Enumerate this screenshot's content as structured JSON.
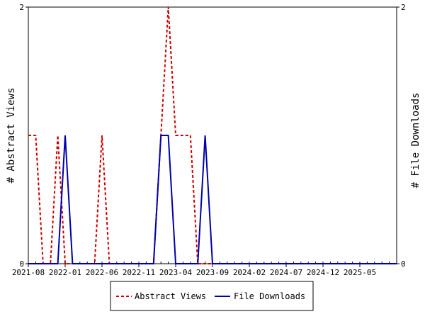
{
  "chart_data": {
    "type": "line",
    "title": "",
    "y_left_label": "# Abstract Views",
    "y_right_label": "# File Downloads",
    "y_left_range": [
      0,
      2
    ],
    "y_right_range": [
      0,
      2
    ],
    "y_left_ticks": [
      "0",
      "2"
    ],
    "y_right_ticks": [
      "0",
      "2"
    ],
    "x_tick_labels": [
      "2021-08",
      "2022-01",
      "2022-06",
      "2022-11",
      "2023-04",
      "2023-09",
      "2024-02",
      "2024-07",
      "2024-12",
      "2025-05"
    ],
    "x_range": [
      "2021-08",
      "2025-10"
    ],
    "grid": false,
    "legend_position": "bottom",
    "series": [
      {
        "name": "Abstract Views",
        "axis": "left",
        "color": "#cc0000",
        "style": "dashed",
        "points": [
          [
            "2021-08",
            1
          ],
          [
            "2021-09",
            1
          ],
          [
            "2021-10",
            0
          ],
          [
            "2021-11",
            0
          ],
          [
            "2021-12",
            1
          ],
          [
            "2022-01",
            0
          ],
          [
            "2022-02",
            0
          ],
          [
            "2022-03",
            0
          ],
          [
            "2022-04",
            0
          ],
          [
            "2022-05",
            0
          ],
          [
            "2022-06",
            1
          ],
          [
            "2022-07",
            0
          ],
          [
            "2022-08",
            0
          ],
          [
            "2022-09",
            0
          ],
          [
            "2022-10",
            0
          ],
          [
            "2022-11",
            0
          ],
          [
            "2022-12",
            0
          ],
          [
            "2023-01",
            0
          ],
          [
            "2023-02",
            1
          ],
          [
            "2023-03",
            2
          ],
          [
            "2023-04",
            1
          ],
          [
            "2023-05",
            1
          ],
          [
            "2023-06",
            1
          ],
          [
            "2023-07",
            0
          ],
          [
            "2023-08",
            0
          ],
          [
            "2023-09",
            0
          ],
          [
            "2023-10",
            0
          ],
          [
            "2023-11",
            0
          ],
          [
            "2023-12",
            0
          ],
          [
            "2024-01",
            0
          ],
          [
            "2024-02",
            0
          ],
          [
            "2024-03",
            0
          ],
          [
            "2024-04",
            0
          ],
          [
            "2024-05",
            0
          ],
          [
            "2024-06",
            0
          ],
          [
            "2024-07",
            0
          ],
          [
            "2024-08",
            0
          ],
          [
            "2024-09",
            0
          ],
          [
            "2024-10",
            0
          ],
          [
            "2024-11",
            0
          ],
          [
            "2024-12",
            0
          ],
          [
            "2025-01",
            0
          ],
          [
            "2025-02",
            0
          ],
          [
            "2025-03",
            0
          ],
          [
            "2025-04",
            0
          ],
          [
            "2025-05",
            0
          ],
          [
            "2025-06",
            0
          ],
          [
            "2025-07",
            0
          ],
          [
            "2025-08",
            0
          ],
          [
            "2025-09",
            0
          ],
          [
            "2025-10",
            0
          ]
        ]
      },
      {
        "name": "File Downloads",
        "axis": "right",
        "color": "#0000aa",
        "style": "solid",
        "points": [
          [
            "2021-08",
            0
          ],
          [
            "2021-09",
            0
          ],
          [
            "2021-10",
            0
          ],
          [
            "2021-11",
            0
          ],
          [
            "2021-12",
            0
          ],
          [
            "2022-01",
            1
          ],
          [
            "2022-02",
            0
          ],
          [
            "2022-03",
            0
          ],
          [
            "2022-04",
            0
          ],
          [
            "2022-05",
            0
          ],
          [
            "2022-06",
            0
          ],
          [
            "2022-07",
            0
          ],
          [
            "2022-08",
            0
          ],
          [
            "2022-09",
            0
          ],
          [
            "2022-10",
            0
          ],
          [
            "2022-11",
            0
          ],
          [
            "2022-12",
            0
          ],
          [
            "2023-01",
            0
          ],
          [
            "2023-02",
            1
          ],
          [
            "2023-03",
            1
          ],
          [
            "2023-04",
            0
          ],
          [
            "2023-05",
            0
          ],
          [
            "2023-06",
            0
          ],
          [
            "2023-07",
            0
          ],
          [
            "2023-08",
            1
          ],
          [
            "2023-09",
            0
          ],
          [
            "2023-10",
            0
          ],
          [
            "2023-11",
            0
          ],
          [
            "2023-12",
            0
          ],
          [
            "2024-01",
            0
          ],
          [
            "2024-02",
            0
          ],
          [
            "2024-03",
            0
          ],
          [
            "2024-04",
            0
          ],
          [
            "2024-05",
            0
          ],
          [
            "2024-06",
            0
          ],
          [
            "2024-07",
            0
          ],
          [
            "2024-08",
            0
          ],
          [
            "2024-09",
            0
          ],
          [
            "2024-10",
            0
          ],
          [
            "2024-11",
            0
          ],
          [
            "2024-12",
            0
          ],
          [
            "2025-01",
            0
          ],
          [
            "2025-02",
            0
          ],
          [
            "2025-03",
            0
          ],
          [
            "2025-04",
            0
          ],
          [
            "2025-05",
            0
          ],
          [
            "2025-06",
            0
          ],
          [
            "2025-07",
            0
          ],
          [
            "2025-08",
            0
          ],
          [
            "2025-09",
            0
          ],
          [
            "2025-10",
            0
          ]
        ]
      }
    ]
  }
}
